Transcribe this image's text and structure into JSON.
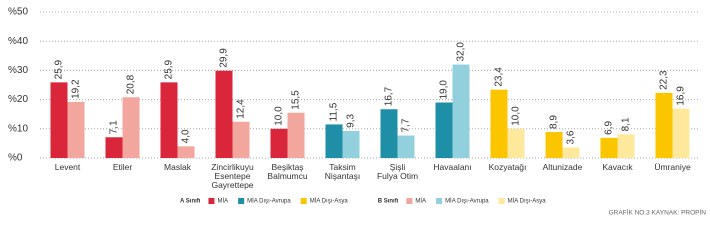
{
  "chart_data": {
    "type": "bar",
    "categories": [
      "Levent",
      "Etiler",
      "Maslak",
      "Zincirlikuyu\nEsentepe\nGayrettepe",
      "Beşiktaş\nBalmumcu",
      "Taksim\nNişantaşı",
      "Şişli\nFulya Otim",
      "Havaalanı",
      "Kozyatağı",
      "Altunizade",
      "Kavacık",
      "Ümraniye"
    ],
    "legend_groups": [
      "A Sınıfı",
      "B Sınıfı"
    ],
    "series": [
      {
        "name": "MİA",
        "group": 0,
        "color": "#d9263b",
        "values": [
          25.9,
          7.1,
          25.9,
          29.9,
          10.0,
          null,
          null,
          null,
          null,
          null,
          null,
          null
        ],
        "value_labels": [
          "25,9",
          "7,1",
          "25,9",
          "29,9",
          "10,0",
          null,
          null,
          null,
          null,
          null,
          null,
          null
        ]
      },
      {
        "name": "MİA Dışı-Avrupa",
        "group": 0,
        "color": "#1f8fa8",
        "values": [
          null,
          null,
          null,
          null,
          null,
          11.5,
          16.7,
          19.0,
          null,
          null,
          null,
          null
        ],
        "value_labels": [
          null,
          null,
          null,
          null,
          null,
          "11,5",
          "16,7",
          "19,0",
          null,
          null,
          null,
          null
        ]
      },
      {
        "name": "MİA Dışı-Asya",
        "group": 0,
        "color": "#fbc600",
        "values": [
          null,
          null,
          null,
          null,
          null,
          null,
          null,
          null,
          23.4,
          8.9,
          6.9,
          22.3
        ],
        "value_labels": [
          null,
          null,
          null,
          null,
          null,
          null,
          null,
          null,
          "23,4",
          "8,9",
          "6,9",
          "22,3"
        ]
      },
      {
        "name": "MİA",
        "group": 1,
        "color": "#f2a69d",
        "values": [
          19.2,
          20.8,
          4.0,
          12.4,
          15.5,
          null,
          null,
          null,
          null,
          null,
          null,
          null
        ],
        "value_labels": [
          "19,2",
          "20,8",
          "4,0",
          "12,4",
          "15,5",
          null,
          null,
          null,
          null,
          null,
          null,
          null
        ]
      },
      {
        "name": "MİA Dışı-Avrupa",
        "group": 1,
        "color": "#92d0dd",
        "values": [
          null,
          null,
          null,
          null,
          null,
          9.3,
          7.7,
          32.0,
          null,
          null,
          null,
          null
        ],
        "value_labels": [
          null,
          null,
          null,
          null,
          null,
          "9,3",
          "7,7",
          "32,0",
          null,
          null,
          null,
          null
        ]
      },
      {
        "name": "MİA Dışı-Asya",
        "group": 1,
        "color": "#fde89c",
        "values": [
          null,
          null,
          null,
          null,
          null,
          null,
          null,
          null,
          10.0,
          3.6,
          8.1,
          16.9
        ],
        "value_labels": [
          null,
          null,
          null,
          null,
          null,
          null,
          null,
          null,
          "10,0",
          "3,6",
          "8,1",
          "16,9"
        ]
      }
    ],
    "ylim": [
      0,
      50
    ],
    "yticks": [
      {
        "value": 0,
        "label": "%0"
      },
      {
        "value": 10,
        "label": "%10"
      },
      {
        "value": 20,
        "label": "%20"
      },
      {
        "value": 30,
        "label": "%30"
      },
      {
        "value": 40,
        "label": "%40"
      },
      {
        "value": 50,
        "label": "%50"
      }
    ],
    "grid": true,
    "source": "GRAFİK NO.3 KAYNAK: PROPİN"
  }
}
